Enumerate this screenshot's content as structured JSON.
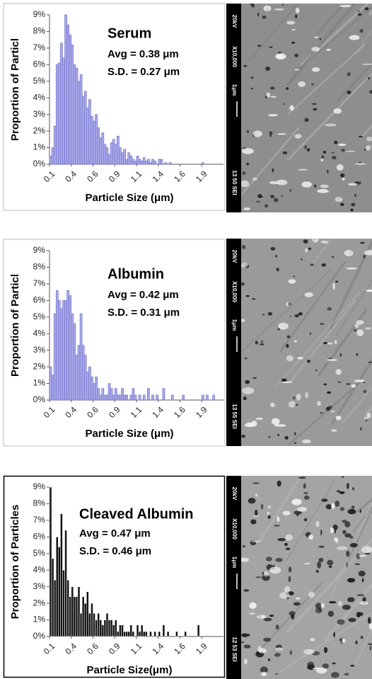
{
  "chart_data": [
    {
      "type": "histogram",
      "title": "Serum",
      "annotations": [
        "Avg = 0.38 μm",
        "S.D. = 0.27 μm"
      ],
      "ylabel": "Proportion of Particl",
      "xlabel": "Particle Size (μm)",
      "bins": [
        0.1,
        0.125,
        0.15,
        0.175,
        0.2,
        0.225,
        0.25,
        0.275,
        0.3,
        0.325,
        0.35,
        0.375,
        0.4,
        0.425,
        0.45,
        0.475,
        0.5,
        0.525,
        0.55,
        0.575,
        0.6,
        0.625,
        0.65,
        0.675,
        0.7,
        0.725,
        0.75,
        0.775,
        0.8,
        0.825,
        0.85,
        0.875,
        0.9,
        0.925,
        0.95,
        0.975,
        1.0,
        1.025,
        1.05,
        1.075,
        1.1,
        1.125,
        1.15,
        1.175,
        1.2,
        1.225,
        1.25,
        1.275,
        1.3,
        1.325,
        1.35,
        1.375,
        1.4,
        1.425,
        1.45,
        1.475,
        1.5,
        1.525,
        1.55,
        1.575,
        1.6,
        1.625,
        1.65,
        1.675,
        1.7,
        1.725,
        1.75,
        1.775,
        1.8,
        1.825,
        1.85,
        1.875,
        1.9,
        1.925,
        1.95,
        1.975,
        2.0
      ],
      "values": [
        0.5,
        1.0,
        2.3,
        6.0,
        6.1,
        7.3,
        6.4,
        9.0,
        8.4,
        7.8,
        7.2,
        6.0,
        5.8,
        5.0,
        5.4,
        4.1,
        4.4,
        3.4,
        3.9,
        2.9,
        2.6,
        3.0,
        2.2,
        1.6,
        1.9,
        1.2,
        1.0,
        0.6,
        1.3,
        1.5,
        1.2,
        1.7,
        1.0,
        0.7,
        0.9,
        0.3,
        0.7,
        0.5,
        0.3,
        0.2,
        0.5,
        0.3,
        0.2,
        0.4,
        0.2,
        0.3,
        0.1,
        0.3,
        0.2,
        0,
        0.3,
        0.3,
        0,
        0.1,
        0,
        0.1,
        0,
        0,
        0,
        0,
        0,
        0,
        0,
        0,
        0,
        0,
        0,
        0,
        0,
        0,
        0.1,
        0,
        0,
        0,
        0,
        0
      ],
      "color": "#a9a9ea",
      "edgecolor": "#6b6bc4",
      "xlim": [
        0.1,
        2.1
      ],
      "xticks": [
        0.1,
        {
          "value": 0.35,
          "label": "0.4"
        },
        0.6,
        {
          "value": 0.85,
          "label": "0.9"
        },
        1.1,
        {
          "value": 1.35,
          "label": "1.4"
        },
        1.6,
        {
          "value": 1.85,
          "label": "1.9"
        }
      ],
      "ylim": [
        0,
        9
      ],
      "yticks": [
        {
          "value": 0,
          "label": "0%"
        },
        {
          "value": 1,
          "label": "1%"
        },
        {
          "value": 2,
          "label": "2%"
        },
        {
          "value": 3,
          "label": "3%"
        },
        {
          "value": 4,
          "label": "4%"
        },
        {
          "value": 5,
          "label": "5%"
        },
        {
          "value": 6,
          "label": "6%"
        },
        {
          "value": 7,
          "label": "7%"
        },
        {
          "value": 8,
          "label": "8%"
        },
        {
          "value": 9,
          "label": "9%"
        }
      ]
    },
    {
      "type": "histogram",
      "title": "Albumin",
      "annotations": [
        "Avg = 0.42 μm",
        "S.D. = 0.31 μm"
      ],
      "ylabel": "Proportion of Particl",
      "xlabel": "Particle Size (μm)",
      "bins": [
        0.1,
        0.125,
        0.15,
        0.175,
        0.2,
        0.225,
        0.25,
        0.275,
        0.3,
        0.325,
        0.35,
        0.375,
        0.4,
        0.425,
        0.45,
        0.475,
        0.5,
        0.525,
        0.55,
        0.575,
        0.6,
        0.625,
        0.65,
        0.675,
        0.7,
        0.725,
        0.75,
        0.775,
        0.8,
        0.825,
        0.85,
        0.875,
        0.9,
        0.925,
        0.95,
        0.975,
        1.0,
        1.025,
        1.05,
        1.075,
        1.1,
        1.125,
        1.15,
        1.175,
        1.2,
        1.225,
        1.25,
        1.275,
        1.3,
        1.325,
        1.35,
        1.375,
        1.4,
        1.425,
        1.45,
        1.475,
        1.5,
        1.525,
        1.55,
        1.575,
        1.6,
        1.625,
        1.65,
        1.675,
        1.7,
        1.725,
        1.75,
        1.775,
        1.8,
        1.825,
        1.85,
        1.875,
        1.9,
        1.925,
        1.95,
        1.975,
        2.0
      ],
      "values": [
        2.0,
        1.5,
        5.2,
        6.6,
        6.0,
        5.5,
        6.0,
        6.0,
        6.6,
        6.3,
        5.2,
        4.6,
        2.7,
        3.3,
        5.2,
        3.3,
        2.7,
        1.7,
        2.0,
        1.4,
        1.0,
        1.4,
        0.7,
        0.3,
        0.7,
        0.3,
        0.3,
        1.0,
        0.7,
        0.3,
        0.7,
        0.3,
        0.3,
        0.7,
        0.3,
        0.3,
        0,
        0.3,
        0.7,
        0.3,
        0,
        0.3,
        0,
        0.3,
        0,
        0.7,
        0,
        0.3,
        0,
        0.3,
        0,
        0,
        0.7,
        0,
        0,
        0,
        0.3,
        0,
        0,
        0,
        0,
        0.3,
        0,
        0,
        0,
        0,
        0,
        0,
        0,
        0,
        0.3,
        0,
        0.3,
        0,
        0,
        0.3
      ],
      "color": "#a9a9ea",
      "edgecolor": "#6b6bc4",
      "xlim": [
        0.1,
        2.1
      ],
      "xticks": [
        0.1,
        {
          "value": 0.35,
          "label": "0.4"
        },
        0.6,
        {
          "value": 0.85,
          "label": "0.9"
        },
        1.1,
        {
          "value": 1.35,
          "label": "1.4"
        },
        1.6,
        {
          "value": 1.85,
          "label": "1.9"
        }
      ],
      "ylim": [
        0,
        9
      ],
      "yticks": [
        {
          "value": 0,
          "label": "0%"
        },
        {
          "value": 1,
          "label": "1%"
        },
        {
          "value": 2,
          "label": "2%"
        },
        {
          "value": 3,
          "label": "3%"
        },
        {
          "value": 4,
          "label": "4%"
        },
        {
          "value": 5,
          "label": "5%"
        },
        {
          "value": 6,
          "label": "6%"
        },
        {
          "value": 7,
          "label": "7%"
        },
        {
          "value": 8,
          "label": "8%"
        },
        {
          "value": 9,
          "label": "9%"
        }
      ]
    },
    {
      "type": "histogram",
      "title": "Cleaved Albumin",
      "annotations": [
        "Avg = 0.47 μm",
        "S.D. = 0.46 μm"
      ],
      "ylabel": "Proportion of Particles",
      "xlabel": "Particle Size(μm)",
      "bins": [
        0.1,
        0.125,
        0.15,
        0.175,
        0.2,
        0.225,
        0.25,
        0.275,
        0.3,
        0.325,
        0.35,
        0.375,
        0.4,
        0.425,
        0.45,
        0.475,
        0.5,
        0.525,
        0.55,
        0.575,
        0.6,
        0.625,
        0.65,
        0.675,
        0.7,
        0.725,
        0.75,
        0.775,
        0.8,
        0.825,
        0.85,
        0.875,
        0.9,
        0.925,
        0.95,
        0.975,
        1.0,
        1.025,
        1.05,
        1.075,
        1.1,
        1.125,
        1.15,
        1.175,
        1.2,
        1.225,
        1.25,
        1.275,
        1.3,
        1.325,
        1.35,
        1.375,
        1.4,
        1.425,
        1.45,
        1.475,
        1.5,
        1.525,
        1.55,
        1.575,
        1.6,
        1.625,
        1.65,
        1.675,
        1.7,
        1.725,
        1.75,
        1.775,
        1.8,
        1.825,
        1.85,
        1.875,
        1.9,
        1.925,
        1.95,
        1.975,
        2.0
      ],
      "values": [
        9.0,
        4.7,
        3.4,
        6.0,
        5.4,
        7.4,
        4.0,
        6.4,
        3.4,
        2.4,
        3.0,
        2.4,
        2.4,
        3.0,
        1.4,
        2.4,
        2.0,
        2.7,
        1.4,
        2.0,
        1.4,
        1.0,
        1.4,
        1.0,
        0.7,
        1.0,
        1.4,
        1.0,
        1.0,
        0.7,
        1.0,
        0.3,
        0.7,
        0.7,
        0.3,
        0.3,
        0.3,
        0.7,
        0.3,
        0,
        0.7,
        0.3,
        0.7,
        0.3,
        0.3,
        0,
        0.3,
        0,
        0.3,
        0,
        0.3,
        0,
        0.7,
        0,
        0.3,
        0,
        0,
        0,
        0.3,
        0,
        0,
        0,
        0.3,
        0,
        0,
        0,
        0,
        0,
        0.7,
        0,
        0,
        0,
        0,
        0,
        0,
        0
      ],
      "color": "#111111",
      "edgecolor": "#ffffff",
      "xlim": [
        0.1,
        2.1
      ],
      "xticks": [
        0.1,
        {
          "value": 0.35,
          "label": "0.4"
        },
        0.6,
        {
          "value": 0.85,
          "label": "0.9"
        },
        1.1,
        {
          "value": 1.35,
          "label": "1.4"
        },
        1.6,
        {
          "value": 1.85,
          "label": "1.9"
        }
      ],
      "ylim": [
        0,
        9
      ],
      "yticks": [
        {
          "value": 0,
          "label": "0%"
        },
        {
          "value": 1,
          "label": "1%"
        },
        {
          "value": 2,
          "label": "2%"
        },
        {
          "value": 3,
          "label": "3%"
        },
        {
          "value": 4,
          "label": "4%"
        },
        {
          "value": 5,
          "label": "5%"
        },
        {
          "value": 6,
          "label": "6%"
        },
        {
          "value": 7,
          "label": "7%"
        },
        {
          "value": 8,
          "label": "8%"
        },
        {
          "value": 9,
          "label": "9%"
        }
      ]
    }
  ],
  "micrographs": [
    {
      "voltage": "20kV",
      "magnification": "X10,000",
      "scale": "1μm",
      "code": "13 50 SEI"
    },
    {
      "voltage": "20kV",
      "magnification": "X10,000",
      "scale": "1μm",
      "code": "13 55 SEI"
    },
    {
      "voltage": "20kV",
      "magnification": "X10,000",
      "scale": "1μm",
      "code": "12 53 SEI"
    }
  ]
}
